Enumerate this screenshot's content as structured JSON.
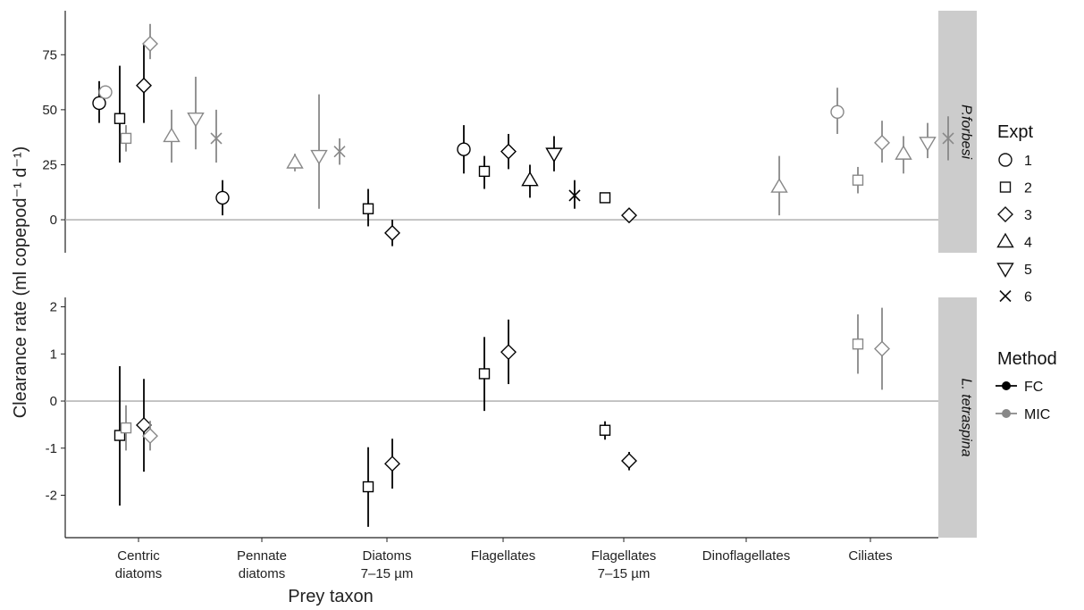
{
  "chart_data": {
    "type": "scatter",
    "xlabel": "Prey taxon",
    "ylabel": "Clearance rate (ml copepod⁻¹ d⁻¹)",
    "categories": [
      [
        "Centric",
        "diatoms"
      ],
      [
        "Pennate",
        "diatoms"
      ],
      [
        "Diatoms",
        "7–15 µm"
      ],
      [
        "Flagellates"
      ],
      [
        "Flagellates",
        "7–15 µm"
      ],
      [
        "Dinoflagellates"
      ],
      [
        "Ciliates"
      ]
    ],
    "reference_line": 0,
    "colors": {
      "FC": "#000000",
      "MIC": "#888888",
      "zero_line": "#aaaaaa",
      "strip": "#cccccc"
    },
    "legend": {
      "expt_title": "Expt",
      "expt": [
        {
          "label": "1",
          "shape": "circle"
        },
        {
          "label": "2",
          "shape": "square"
        },
        {
          "label": "3",
          "shape": "diamond"
        },
        {
          "label": "4",
          "shape": "triangle-up"
        },
        {
          "label": "5",
          "shape": "triangle-down"
        },
        {
          "label": "6",
          "shape": "cross"
        }
      ],
      "method_title": "Method",
      "method": [
        {
          "label": "FC"
        },
        {
          "label": "MIC"
        }
      ]
    },
    "panels": [
      {
        "strip": "P.forbesi",
        "ylim": [
          -15,
          95
        ],
        "yticks": [
          0,
          25,
          50,
          75
        ],
        "points": [
          {
            "category": 0,
            "expt": 1,
            "method": "FC",
            "y": 53,
            "low": 44,
            "high": 63
          },
          {
            "category": 0,
            "expt": 1,
            "method": "MIC",
            "y": 58,
            "low": 56,
            "high": 61
          },
          {
            "category": 0,
            "expt": 2,
            "method": "FC",
            "y": 46,
            "low": 26,
            "high": 70
          },
          {
            "category": 0,
            "expt": 2,
            "method": "MIC",
            "y": 37,
            "low": 31,
            "high": 43
          },
          {
            "category": 0,
            "expt": 3,
            "method": "FC",
            "y": 61,
            "low": 44,
            "high": 80
          },
          {
            "category": 0,
            "expt": 3,
            "method": "MIC",
            "y": 80,
            "low": 73,
            "high": 89
          },
          {
            "category": 0,
            "expt": 4,
            "method": "MIC",
            "y": 38,
            "low": 26,
            "high": 50
          },
          {
            "category": 0,
            "expt": 5,
            "method": "MIC",
            "y": 46,
            "low": 32,
            "high": 65
          },
          {
            "category": 0,
            "expt": 6,
            "method": "MIC",
            "y": 37,
            "low": 26,
            "high": 50
          },
          {
            "category": 1,
            "expt": 1,
            "method": "FC",
            "y": 10,
            "low": 2,
            "high": 18
          },
          {
            "category": 1,
            "expt": 4,
            "method": "MIC",
            "y": 26,
            "low": 22,
            "high": 30
          },
          {
            "category": 1,
            "expt": 5,
            "method": "MIC",
            "y": 29,
            "low": 5,
            "high": 57
          },
          {
            "category": 1,
            "expt": 6,
            "method": "MIC",
            "y": 31,
            "low": 25,
            "high": 37
          },
          {
            "category": 2,
            "expt": 2,
            "method": "FC",
            "y": 5,
            "low": -3,
            "high": 14
          },
          {
            "category": 2,
            "expt": 3,
            "method": "FC",
            "y": -6,
            "low": -12,
            "high": 0
          },
          {
            "category": 3,
            "expt": 1,
            "method": "FC",
            "y": 32,
            "low": 21,
            "high": 43
          },
          {
            "category": 3,
            "expt": 2,
            "method": "FC",
            "y": 22,
            "low": 14,
            "high": 29
          },
          {
            "category": 3,
            "expt": 3,
            "method": "FC",
            "y": 31,
            "low": 23,
            "high": 39
          },
          {
            "category": 3,
            "expt": 4,
            "method": "FC",
            "y": 18,
            "low": 10,
            "high": 25
          },
          {
            "category": 3,
            "expt": 5,
            "method": "FC",
            "y": 30,
            "low": 22,
            "high": 38
          },
          {
            "category": 3,
            "expt": 6,
            "method": "FC",
            "y": 11,
            "low": 5,
            "high": 18
          },
          {
            "category": 4,
            "expt": 2,
            "method": "FC",
            "y": 10,
            "low": 9,
            "high": 11
          },
          {
            "category": 4,
            "expt": 3,
            "method": "FC",
            "y": 2,
            "low": 1,
            "high": 3
          },
          {
            "category": 5,
            "expt": 4,
            "method": "MIC",
            "y": 15,
            "low": 2,
            "high": 29
          },
          {
            "category": 6,
            "expt": 1,
            "method": "MIC",
            "y": 49,
            "low": 39,
            "high": 60
          },
          {
            "category": 6,
            "expt": 2,
            "method": "MIC",
            "y": 18,
            "low": 12,
            "high": 24
          },
          {
            "category": 6,
            "expt": 3,
            "method": "MIC",
            "y": 35,
            "low": 26,
            "high": 45
          },
          {
            "category": 6,
            "expt": 4,
            "method": "MIC",
            "y": 30,
            "low": 21,
            "high": 38
          },
          {
            "category": 6,
            "expt": 5,
            "method": "MIC",
            "y": 35,
            "low": 28,
            "high": 44
          },
          {
            "category": 6,
            "expt": 6,
            "method": "MIC",
            "y": 37,
            "low": 27,
            "high": 47
          }
        ]
      },
      {
        "strip": "L. tetraspina",
        "ylim": [
          -2.9,
          2.2
        ],
        "yticks": [
          -2,
          -1,
          0,
          1,
          2
        ],
        "points": [
          {
            "category": 0,
            "expt": 2,
            "method": "FC",
            "y": -0.73,
            "low": -2.22,
            "high": 0.74
          },
          {
            "category": 0,
            "expt": 2,
            "method": "MIC",
            "y": -0.57,
            "low": -1.05,
            "high": -0.09
          },
          {
            "category": 0,
            "expt": 3,
            "method": "FC",
            "y": -0.51,
            "low": -1.5,
            "high": 0.47
          },
          {
            "category": 0,
            "expt": 3,
            "method": "MIC",
            "y": -0.74,
            "low": -1.05,
            "high": -0.42
          },
          {
            "category": 2,
            "expt": 2,
            "method": "FC",
            "y": -1.82,
            "low": -2.67,
            "high": -0.98
          },
          {
            "category": 2,
            "expt": 3,
            "method": "FC",
            "y": -1.33,
            "low": -1.86,
            "high": -0.8
          },
          {
            "category": 3,
            "expt": 2,
            "method": "FC",
            "y": 0.58,
            "low": -0.21,
            "high": 1.36
          },
          {
            "category": 3,
            "expt": 3,
            "method": "FC",
            "y": 1.04,
            "low": 0.36,
            "high": 1.73
          },
          {
            "category": 4,
            "expt": 2,
            "method": "FC",
            "y": -0.62,
            "low": -0.82,
            "high": -0.43
          },
          {
            "category": 4,
            "expt": 3,
            "method": "FC",
            "y": -1.27,
            "low": -1.47,
            "high": -1.08
          },
          {
            "category": 6,
            "expt": 2,
            "method": "MIC",
            "y": 1.21,
            "low": 0.58,
            "high": 1.84
          },
          {
            "category": 6,
            "expt": 3,
            "method": "MIC",
            "y": 1.11,
            "low": 0.24,
            "high": 1.98
          }
        ]
      }
    ]
  }
}
